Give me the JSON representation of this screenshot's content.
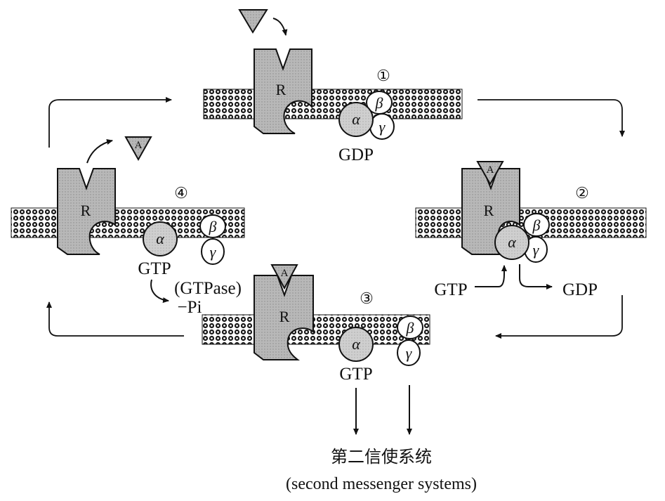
{
  "step_markers": {
    "s1": "①",
    "s2": "②",
    "s3": "③",
    "s4": "④"
  },
  "receptor_label": "R",
  "agonist_label": "A",
  "subunits": {
    "alpha": "α",
    "beta": "β",
    "gamma": "γ"
  },
  "nucleotides": {
    "gdp": "GDP",
    "gtp": "GTP"
  },
  "gtpase_label": "(GTPase)",
  "phosphate_label": "−Pi",
  "caption": {
    "chinese": "第二信使系统",
    "english": "(second messenger systems)"
  },
  "colors": {
    "membrane_dot": "#1a1a1a",
    "receptor_fill": "#b8b8b8",
    "alpha_fill": "#c8c8c8",
    "subunit_fill": "#ffffff",
    "line": "#111111"
  }
}
